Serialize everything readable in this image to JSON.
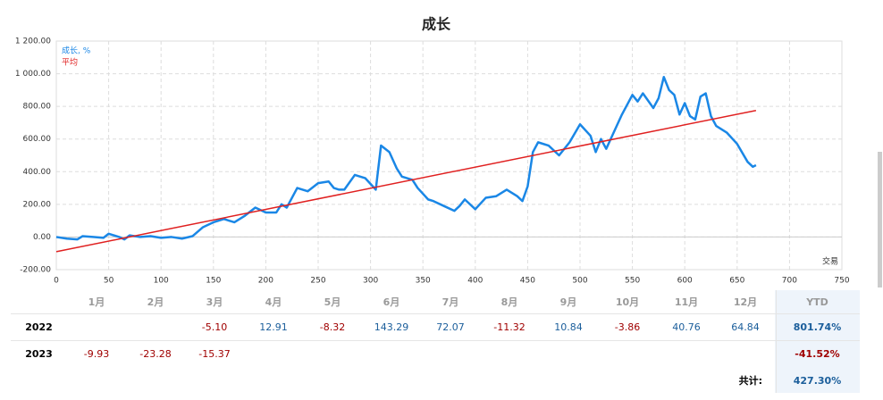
{
  "chart_data": {
    "type": "line",
    "title": "成长",
    "x_label": "交易",
    "xlim": [
      0,
      750
    ],
    "xticks": [
      0,
      50,
      100,
      150,
      200,
      250,
      300,
      350,
      400,
      450,
      500,
      550,
      600,
      650,
      700,
      750
    ],
    "ylim": [
      -200,
      1200
    ],
    "yticks": [
      {
        "value": -200,
        "label": "-200.00"
      },
      {
        "value": 0,
        "label": "0.00"
      },
      {
        "value": 200,
        "label": "200.00"
      },
      {
        "value": 400,
        "label": "400.00"
      },
      {
        "value": 600,
        "label": "600.00"
      },
      {
        "value": 800,
        "label": "800.00"
      },
      {
        "value": 1000,
        "label": "1 000.00"
      },
      {
        "value": 1200,
        "label": "1 200.00"
      }
    ],
    "grid": true,
    "series": [
      {
        "name": "成长, %",
        "color": "#1a87e6",
        "x": [
          0,
          10,
          20,
          25,
          35,
          45,
          50,
          60,
          65,
          70,
          80,
          90,
          100,
          110,
          120,
          130,
          140,
          150,
          160,
          170,
          180,
          190,
          200,
          210,
          215,
          220,
          230,
          240,
          250,
          260,
          265,
          270,
          275,
          285,
          295,
          305,
          310,
          318,
          325,
          330,
          340,
          345,
          355,
          360,
          370,
          380,
          385,
          390,
          400,
          410,
          420,
          430,
          440,
          445,
          450,
          455,
          460,
          470,
          480,
          490,
          500,
          510,
          515,
          520,
          525,
          530,
          540,
          550,
          555,
          560,
          570,
          575,
          580,
          585,
          590,
          595,
          600,
          605,
          610,
          615,
          620,
          625,
          630,
          640,
          650,
          660,
          665,
          668
        ],
        "values": [
          0,
          -10,
          -15,
          5,
          0,
          -5,
          20,
          0,
          -15,
          10,
          0,
          5,
          -5,
          0,
          -10,
          5,
          60,
          90,
          110,
          90,
          130,
          180,
          150,
          150,
          200,
          180,
          300,
          280,
          330,
          340,
          300,
          290,
          290,
          380,
          360,
          290,
          560,
          520,
          420,
          370,
          350,
          300,
          230,
          220,
          190,
          160,
          190,
          230,
          170,
          240,
          250,
          290,
          250,
          220,
          310,
          520,
          580,
          560,
          500,
          580,
          690,
          620,
          520,
          600,
          540,
          610,
          750,
          870,
          830,
          880,
          790,
          850,
          980,
          900,
          870,
          750,
          820,
          740,
          720,
          860,
          880,
          740,
          680,
          640,
          570,
          460,
          430,
          440
        ]
      },
      {
        "name": "平均",
        "color": "#e02020",
        "x": [
          0,
          668
        ],
        "values": [
          -90,
          775
        ]
      }
    ]
  },
  "table": {
    "columns": [
      null,
      "1月",
      "2月",
      "3月",
      "4月",
      "5月",
      "6月",
      "7月",
      "8月",
      "9月",
      "10月",
      "11月",
      "12月",
      "YTD"
    ],
    "rows": [
      [
        "2022",
        null,
        null,
        "-5.10",
        "12.91",
        "-8.32",
        "143.29",
        "72.07",
        "-11.32",
        "10.84",
        "-3.86",
        "40.76",
        "64.84",
        "801.74%"
      ],
      [
        "2023",
        "-9.93",
        "-23.28",
        "-15.37",
        null,
        null,
        null,
        null,
        null,
        null,
        null,
        null,
        null,
        "-41.52%"
      ]
    ],
    "total_label": "共计:",
    "total": "427.30%"
  }
}
